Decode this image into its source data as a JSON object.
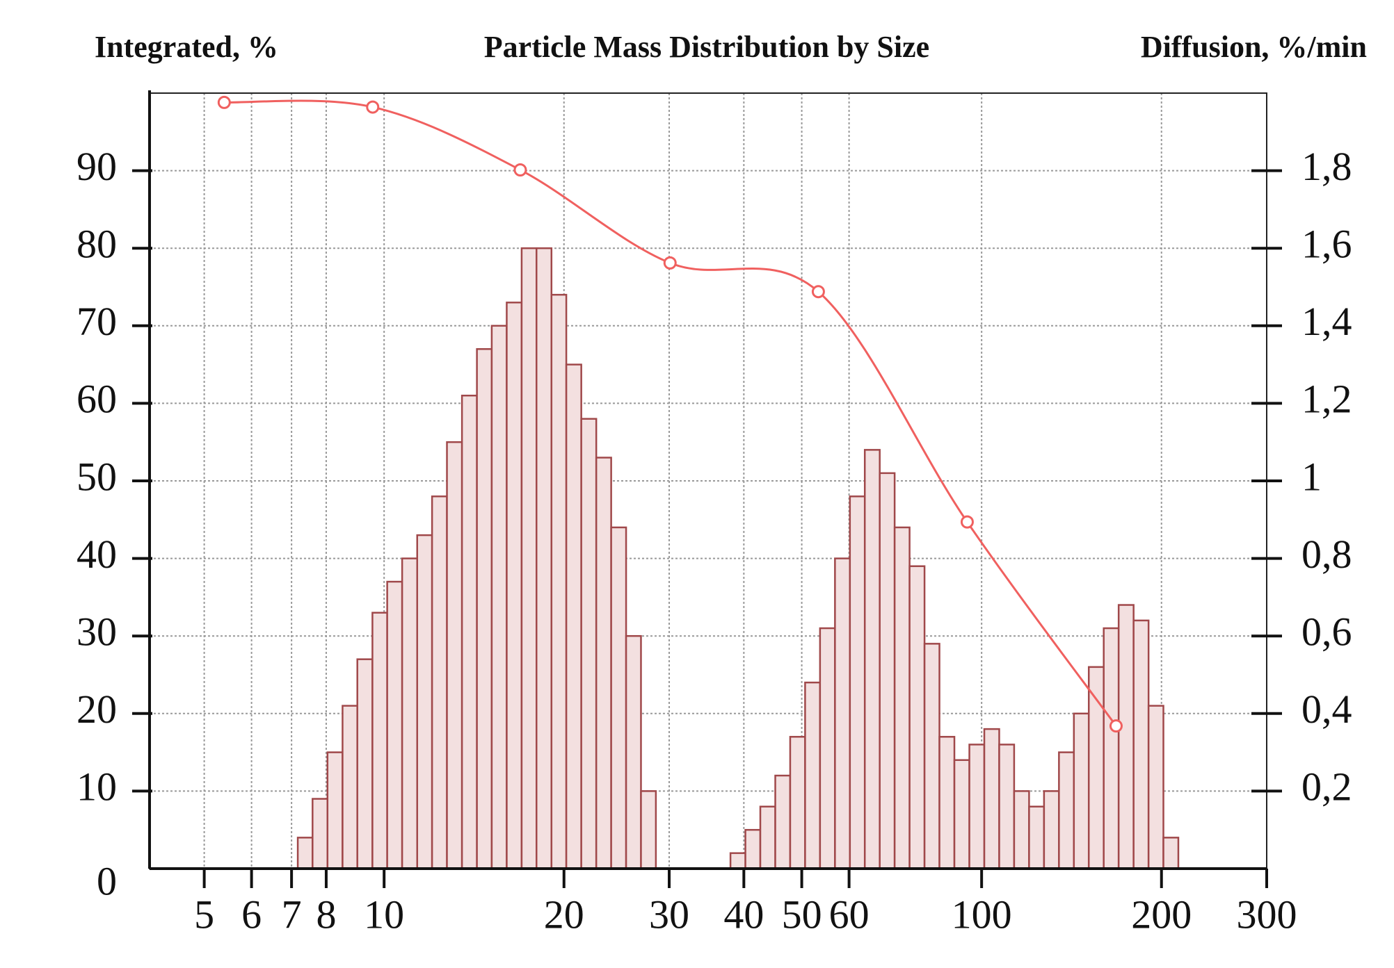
{
  "chart_data": {
    "type": "combo",
    "title": "Particle Mass Distribution by Size",
    "ylabel": "Integrated, %",
    "y2label": "Diffusion, %/min",
    "xscale": "log",
    "xlim": [
      4.05,
      300
    ],
    "xticks": [
      5,
      6,
      7,
      8,
      10,
      20,
      30,
      40,
      50,
      60,
      100,
      200,
      300
    ],
    "ylim": [
      0,
      100
    ],
    "yticks": [
      0,
      10,
      20,
      30,
      40,
      50,
      60,
      70,
      80,
      90
    ],
    "y2lim": [
      0,
      2
    ],
    "y2ticks": [
      {
        "value": 0.2,
        "label": "0,2"
      },
      {
        "value": 0.4,
        "label": "0,4"
      },
      {
        "value": 0.6,
        "label": "0,6"
      },
      {
        "value": 0.8,
        "label": "0,8"
      },
      1,
      {
        "value": 1.2,
        "label": "1,2"
      },
      {
        "value": 1.4,
        "label": "1,4"
      },
      {
        "value": 1.6,
        "label": "1,6"
      },
      {
        "value": 1.8,
        "label": "1,8"
      }
    ],
    "grid": true,
    "series": [
      {
        "type": "histogram",
        "axis": "y2",
        "color": "#f3e0e0",
        "edge_color": "#a0484a",
        "bins": [
          7.17,
          7.59,
          8.04,
          8.52,
          9.02,
          9.56,
          10.12,
          10.72,
          11.36,
          12.03,
          12.74,
          13.5,
          14.3,
          15.14,
          16.04,
          16.99,
          17.99,
          19.06,
          20.18,
          21.38,
          22.65,
          23.99,
          25.41,
          26.91,
          28.5,
          30.19,
          31.98,
          33.87,
          35.87,
          37.99,
          40.24,
          42.62,
          45.15,
          47.82,
          50.65,
          53.65,
          56.83,
          60.2,
          63.75,
          67.53,
          71.52,
          75.76,
          80.25,
          85.0,
          90.04,
          95.39,
          101.04,
          107.02,
          113.35,
          120.07,
          127.19,
          134.72,
          142.7,
          151.13,
          160.09,
          169.57,
          179.63,
          190.28,
          201.49,
          213.42
        ],
        "values": [
          0.08,
          0.18,
          0.3,
          0.42,
          0.54,
          0.66,
          0.74,
          0.8,
          0.86,
          0.96,
          1.1,
          1.22,
          1.34,
          1.4,
          1.46,
          1.6,
          1.6,
          1.48,
          1.3,
          1.16,
          1.06,
          0.88,
          0.6,
          0.2,
          0,
          0,
          0,
          0,
          0,
          0.04,
          0.1,
          0.16,
          0.24,
          0.34,
          0.48,
          0.62,
          0.8,
          0.96,
          1.08,
          1.02,
          0.88,
          0.78,
          0.58,
          0.34,
          0.28,
          0.32,
          0.36,
          0.32,
          0.2,
          0.16,
          0.2,
          0.3,
          0.4,
          0.52,
          0.62,
          0.68,
          0.64,
          0.42,
          0.08
        ]
      },
      {
        "type": "line",
        "axis": "y",
        "color": "#f0605f",
        "x": [
          5.4,
          9.57,
          16.9,
          30.1,
          53.3,
          94.6,
          167.9
        ],
        "values": [
          98.8,
          98.2,
          90.1,
          78.1,
          74.4,
          44.7,
          18.4
        ]
      }
    ]
  }
}
